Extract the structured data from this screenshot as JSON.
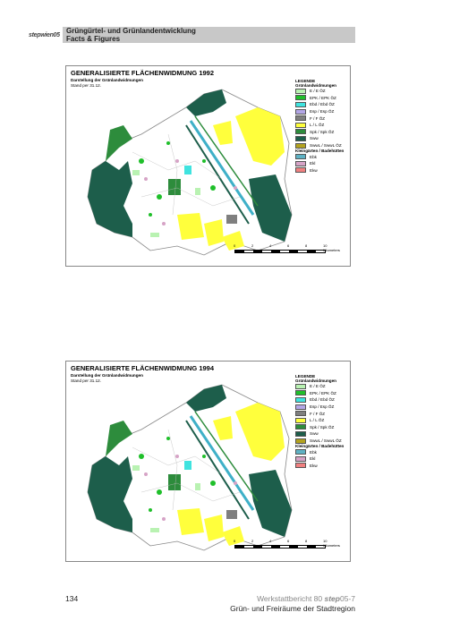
{
  "header": {
    "logo": "stepwien05",
    "title": "Grüngürtel- und Grünlandentwicklung",
    "subtitle": "Facts & Figures"
  },
  "maps": [
    {
      "title": "GENERALISIERTE FLÄCHENWIDMUNG 1992",
      "subtitle": "Darstellung der Grünlandwidmungen",
      "date": "Stand per 31.12.",
      "legend": {
        "heading": "LEGENDE",
        "group1": "Grünlandwidmungen",
        "items1": [
          {
            "label": "E / E ÖZ",
            "color": "#b9f2b2"
          },
          {
            "label": "EPK / EPK ÖZ",
            "color": "#1fbf2a"
          },
          {
            "label": "Ebd / Ebd ÖZ",
            "color": "#3fe3df"
          },
          {
            "label": "Esp / Esp ÖZ",
            "color": "#b3a6e6"
          },
          {
            "label": "F / F ÖZ",
            "color": "#7f7f7f"
          },
          {
            "label": "L / L ÖZ",
            "color": "#ffff3c"
          },
          {
            "label": "Spk / Spk ÖZ",
            "color": "#2d8c3c"
          },
          {
            "label": "Sww",
            "color": "#1d5e4b"
          },
          {
            "label": "SwwL / SwwL ÖZ",
            "color": "#b3a21f"
          }
        ],
        "group2": "Kleingärten / Badehütten",
        "items2": [
          {
            "label": "Ebk",
            "color": "#5eb2c4"
          },
          {
            "label": "Ekl",
            "color": "#d6a3c6"
          },
          {
            "label": "Ekw",
            "color": "#f08080"
          }
        ]
      },
      "scale": [
        "0",
        "2",
        "4",
        "6",
        "8",
        "10 Kilometers"
      ]
    },
    {
      "title": "GENERALISIERTE FLÄCHENWIDMUNG 1994",
      "subtitle": "Darstellung der Grünlandwidmungen",
      "date": "Stand per 31.12.",
      "legend": {
        "heading": "LEGENDE",
        "group1": "Grünlandwidmungen",
        "items1": [
          {
            "label": "E / E ÖZ",
            "color": "#b9f2b2"
          },
          {
            "label": "EPK / EPK ÖZ",
            "color": "#1fbf2a"
          },
          {
            "label": "Ebd / Ebd ÖZ",
            "color": "#3fe3df"
          },
          {
            "label": "Esp / Esp ÖZ",
            "color": "#b3a6e6"
          },
          {
            "label": "F / F ÖZ",
            "color": "#7f7f7f"
          },
          {
            "label": "L / L ÖZ",
            "color": "#ffff3c"
          },
          {
            "label": "Spk / Spk ÖZ",
            "color": "#2d8c3c"
          },
          {
            "label": "Sww",
            "color": "#1d5e4b"
          },
          {
            "label": "SwwL / SwwL ÖZ",
            "color": "#b3a21f"
          }
        ],
        "group2": "Kleingärten / Badehütten",
        "items2": [
          {
            "label": "Ebk",
            "color": "#5eb2c4"
          },
          {
            "label": "Ekl",
            "color": "#d6a3c6"
          },
          {
            "label": "Ekw",
            "color": "#f08080"
          }
        ]
      },
      "scale": [
        "0",
        "2",
        "4",
        "6",
        "8",
        "10 Kilometers"
      ]
    }
  ],
  "footer": {
    "page": "134",
    "series": "Werkstattbericht 80 ",
    "series_step": "step",
    "series_no": "05-7",
    "subtitle": "Grün- und Freiräume der Stadtregion"
  }
}
